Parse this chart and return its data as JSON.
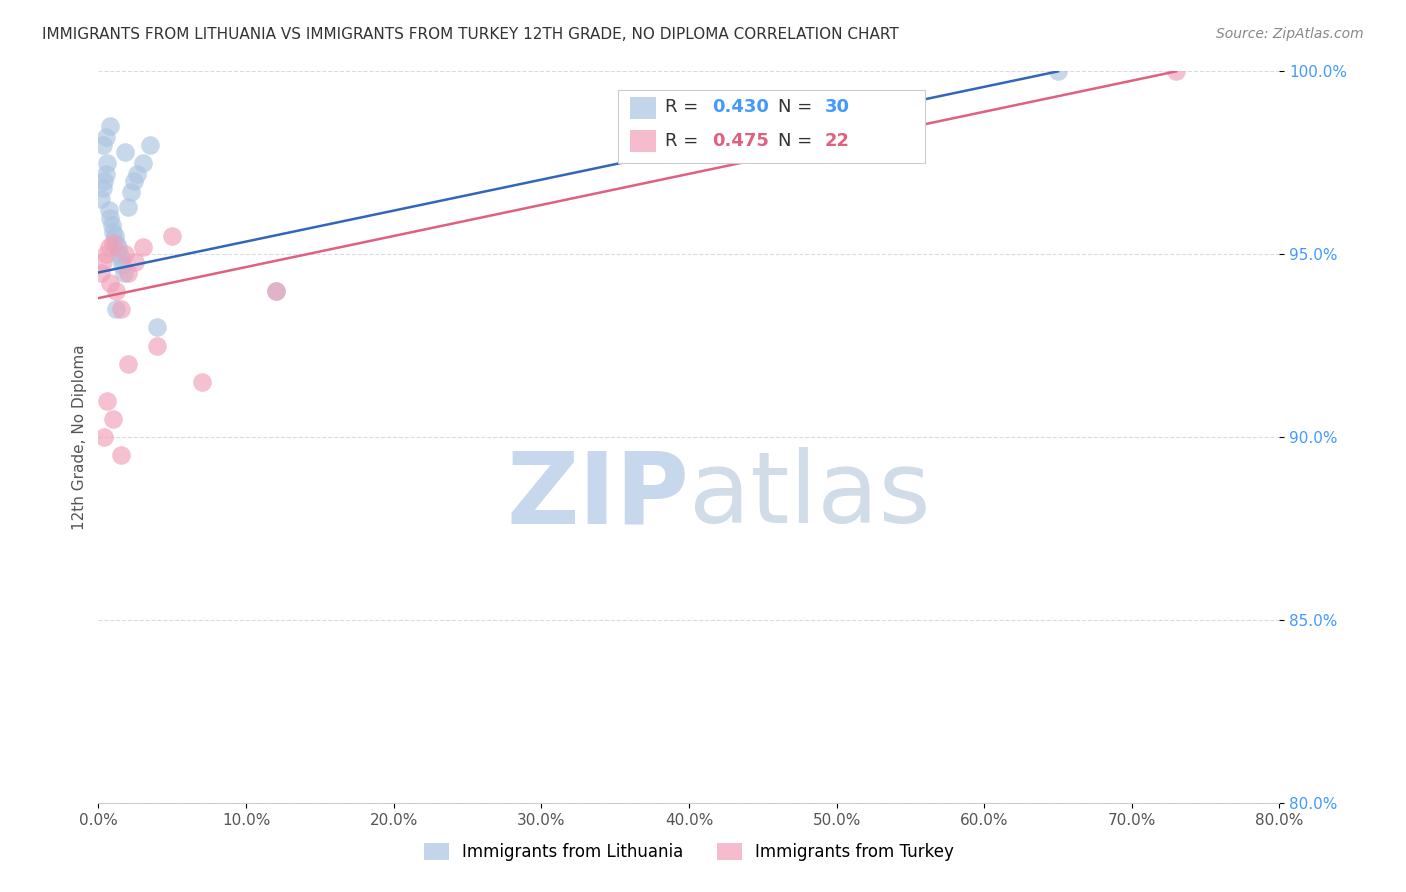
{
  "title": "IMMIGRANTS FROM LITHUANIA VS IMMIGRANTS FROM TURKEY 12TH GRADE, NO DIPLOMA CORRELATION CHART",
  "source": "Source: ZipAtlas.com",
  "ylabel": "12th Grade, No Diploma",
  "legend_label_blue": "Immigrants from Lithuania",
  "legend_label_pink": "Immigrants from Turkey",
  "r_blue": 0.43,
  "n_blue": 30,
  "r_pink": 0.475,
  "n_pink": 22,
  "xmin": 0.0,
  "xmax": 80.0,
  "ymin": 80.0,
  "ymax": 100.0,
  "yticks": [
    80.0,
    85.0,
    90.0,
    95.0,
    100.0
  ],
  "xticks": [
    0.0,
    10.0,
    20.0,
    30.0,
    40.0,
    50.0,
    60.0,
    70.0,
    80.0
  ],
  "color_blue": "#aac4e0",
  "color_pink": "#f0a0b8",
  "color_blue_line": "#3366bb",
  "color_pink_line": "#e06080",
  "color_blue_text": "#4499ff",
  "color_pink_text": "#e06080",
  "background_color": "#ffffff",
  "grid_color": "#cccccc",
  "blue_scatter_x": [
    0.2,
    0.3,
    0.4,
    0.5,
    0.6,
    0.7,
    0.8,
    0.9,
    1.0,
    1.1,
    1.2,
    1.3,
    1.4,
    1.5,
    1.6,
    1.7,
    1.8,
    2.0,
    2.2,
    2.4,
    2.6,
    3.0,
    3.5,
    4.0,
    0.3,
    0.5,
    0.8,
    1.2,
    12.0,
    65.0
  ],
  "blue_scatter_y": [
    96.5,
    96.8,
    97.0,
    97.2,
    97.5,
    96.2,
    96.0,
    95.8,
    95.6,
    95.5,
    95.3,
    95.2,
    95.0,
    94.9,
    94.7,
    94.5,
    97.8,
    96.3,
    96.7,
    97.0,
    97.2,
    97.5,
    98.0,
    93.0,
    98.0,
    98.2,
    98.5,
    93.5,
    94.0,
    100.0
  ],
  "pink_scatter_x": [
    0.2,
    0.3,
    0.5,
    0.7,
    0.8,
    1.0,
    1.2,
    1.5,
    1.8,
    2.0,
    2.5,
    3.0,
    4.0,
    5.0,
    0.4,
    0.6,
    1.0,
    1.5,
    2.0,
    7.0,
    12.0,
    73.0
  ],
  "pink_scatter_y": [
    94.5,
    94.8,
    95.0,
    95.2,
    94.2,
    95.3,
    94.0,
    93.5,
    95.0,
    94.5,
    94.8,
    95.2,
    92.5,
    95.5,
    90.0,
    91.0,
    90.5,
    89.5,
    92.0,
    91.5,
    94.0,
    100.0
  ],
  "blue_line_x0": 0.0,
  "blue_line_y0": 94.5,
  "blue_line_x1": 65.0,
  "blue_line_y1": 100.0,
  "pink_line_x0": 0.0,
  "pink_line_y0": 93.8,
  "pink_line_x1": 73.0,
  "pink_line_y1": 100.0
}
